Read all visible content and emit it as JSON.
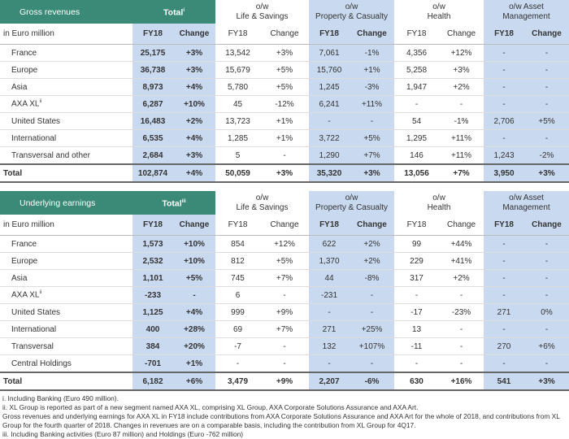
{
  "tables": [
    {
      "header": [
        [
          "Gross revenues"
        ],
        [
          {
            "text": "Total",
            "sup": "i"
          }
        ],
        [
          "o/w",
          "Life & Savings"
        ],
        [
          "o/w",
          "Property & Casualty"
        ],
        [
          "o/w",
          "Health"
        ],
        [
          "o/w Asset",
          "Management"
        ]
      ],
      "subheader": [
        "in Euro million",
        "FY18",
        "Change",
        "FY18",
        "Change",
        "FY18",
        "Change",
        "FY18",
        "Change",
        "FY18",
        "Change"
      ],
      "rows": [
        [
          "France",
          "25,175",
          "+3%",
          "13,542",
          "+3%",
          "7,061",
          "-1%",
          "4,356",
          "+12%",
          "-",
          "-"
        ],
        [
          "Europe",
          "36,738",
          "+3%",
          "15,679",
          "+5%",
          "15,760",
          "+1%",
          "5,258",
          "+3%",
          "-",
          "-"
        ],
        [
          "Asia",
          "8,973",
          "+4%",
          "5,780",
          "+5%",
          "1,245",
          "-3%",
          "1,947",
          "+2%",
          "-",
          "-"
        ],
        [
          {
            "text": "AXA XL",
            "sup": "ii"
          },
          "6,287",
          "+10%",
          "45",
          "-12%",
          "6,241",
          "+11%",
          "-",
          "-",
          "-",
          "-"
        ],
        [
          "United States",
          "16,483",
          "+2%",
          "13,723",
          "+1%",
          "-",
          "-",
          "54",
          "-1%",
          "2,706",
          "+5%"
        ],
        [
          "International",
          "6,535",
          "+4%",
          "1,285",
          "+1%",
          "3,722",
          "+5%",
          "1,295",
          "+11%",
          "-",
          "-"
        ],
        [
          "Transversal and other",
          "2,684",
          "+3%",
          "5",
          "-",
          "1,290",
          "+7%",
          "146",
          "+11%",
          "1,243",
          "-2%"
        ]
      ],
      "total": [
        "Total",
        "102,874",
        "+4%",
        "50,059",
        "+3%",
        "35,320",
        "+3%",
        "13,056",
        "+7%",
        "3,950",
        "+3%"
      ]
    },
    {
      "header": [
        [
          "Underlying earnings"
        ],
        [
          {
            "text": "Total",
            "sup": "iii"
          }
        ],
        [
          "o/w",
          "Life & Savings"
        ],
        [
          "o/w",
          "Property & Casualty"
        ],
        [
          "o/w",
          "Health"
        ],
        [
          "o/w Asset",
          "Management"
        ]
      ],
      "subheader": [
        "in Euro million",
        "FY18",
        "Change",
        "FY18",
        "Change",
        "FY18",
        "Change",
        "FY18",
        "Change",
        "FY18",
        "Change"
      ],
      "rows": [
        [
          "France",
          "1,573",
          "+10%",
          "854",
          "+12%",
          "622",
          "+2%",
          "99",
          "+44%",
          "-",
          "-"
        ],
        [
          "Europe",
          "2,532",
          "+10%",
          "812",
          "+5%",
          "1,370",
          "+2%",
          "229",
          "+41%",
          "-",
          "-"
        ],
        [
          "Asia",
          "1,101",
          "+5%",
          "745",
          "+7%",
          "44",
          "-8%",
          "317",
          "+2%",
          "-",
          "-"
        ],
        [
          {
            "text": "AXA XL",
            "sup": "ii"
          },
          "-233",
          "-",
          "6",
          "-",
          "-231",
          "-",
          "-",
          "-",
          "-",
          "-"
        ],
        [
          "United States",
          "1,125",
          "+4%",
          "999",
          "+9%",
          "-",
          "-",
          "-17",
          "-23%",
          "271",
          "0%"
        ],
        [
          "International",
          "400",
          "+28%",
          "69",
          "+7%",
          "271",
          "+25%",
          "13",
          "-",
          "-",
          "-"
        ],
        [
          "Transversal",
          "384",
          "+20%",
          "-7",
          "-",
          "132",
          "+107%",
          "-11",
          "-",
          "270",
          "+6%"
        ],
        [
          "Central Holdings",
          "-701",
          "+1%",
          "-",
          "-",
          "-",
          "-",
          "-",
          "-",
          "-",
          "-"
        ]
      ],
      "total": [
        "Total",
        "6,182",
        "+6%",
        "3,479",
        "+9%",
        "2,207",
        "-6%",
        "630",
        "+16%",
        "541",
        "+3%"
      ]
    }
  ],
  "footnotes": [
    "i. Including Banking (Euro 490 million).",
    "ii. XL Group is reported as part of a new segment named AXA XL, comprising XL Group, AXA Corporate Solutions Assurance and AXA Art.",
    "Gross revenues and underlying earnings for AXA XL in FY18 include contributions from AXA Corporate Solutions Assurance and AXA Art for the whole of 2018, and contributions from XL Group for the fourth quarter of 2018. Changes in revenues are on a comparable basis, including the contribution from XL Group for 4Q17.",
    "iii. Including Banking activities (Euro 87 million) and Holdings (Euro -762 million)"
  ]
}
